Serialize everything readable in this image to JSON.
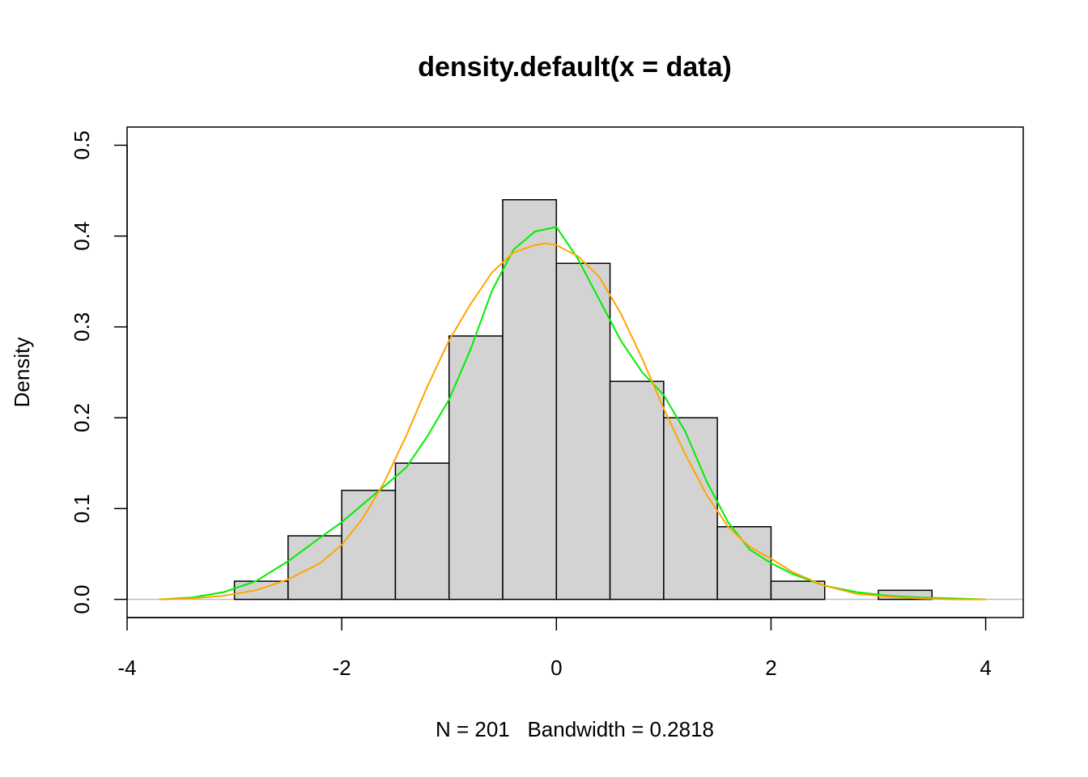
{
  "chart_data": {
    "type": "bar",
    "title": "density.default(x = data)",
    "xlabel": "N = 201   Bandwidth = 0.2818",
    "ylabel": "Density",
    "xlim": [
      -4,
      4.35
    ],
    "ylim": [
      -0.02,
      0.52
    ],
    "x_ticks": [
      -4,
      -2,
      0,
      2,
      4
    ],
    "x_tick_labels": [
      "-4",
      "-2",
      "0",
      "2",
      "4"
    ],
    "y_ticks": [
      0.0,
      0.1,
      0.2,
      0.3,
      0.4,
      0.5
    ],
    "y_tick_labels": [
      "0.0",
      "0.1",
      "0.2",
      "0.3",
      "0.4",
      "0.5"
    ],
    "grid": false,
    "histogram": {
      "breaks": [
        -3.0,
        -2.5,
        -2.0,
        -1.5,
        -1.0,
        -0.5,
        0.0,
        0.5,
        1.0,
        1.5,
        2.0,
        2.5,
        3.0,
        3.5
      ],
      "density": [
        0.02,
        0.07,
        0.12,
        0.15,
        0.29,
        0.44,
        0.37,
        0.24,
        0.2,
        0.08,
        0.02,
        0.0,
        0.01
      ],
      "fill_color": "#d3d3d3",
      "border_color": "#000000"
    },
    "series": [
      {
        "type": "line",
        "color": "#00ee00",
        "x": [
          -3.7,
          -3.4,
          -3.1,
          -2.8,
          -2.5,
          -2.2,
          -2.0,
          -1.8,
          -1.6,
          -1.4,
          -1.2,
          -1.0,
          -0.8,
          -0.6,
          -0.4,
          -0.2,
          0.0,
          0.2,
          0.4,
          0.6,
          0.8,
          1.0,
          1.2,
          1.4,
          1.6,
          1.8,
          2.0,
          2.2,
          2.5,
          2.8,
          3.1,
          3.4,
          3.7,
          4.0
        ],
        "y": [
          0.0,
          0.002,
          0.008,
          0.02,
          0.042,
          0.068,
          0.085,
          0.105,
          0.125,
          0.145,
          0.18,
          0.22,
          0.275,
          0.34,
          0.385,
          0.405,
          0.41,
          0.375,
          0.33,
          0.285,
          0.25,
          0.225,
          0.185,
          0.13,
          0.085,
          0.055,
          0.04,
          0.028,
          0.015,
          0.008,
          0.004,
          0.002,
          0.001,
          0.0
        ]
      },
      {
        "type": "line",
        "color": "#ffa500",
        "x": [
          -3.7,
          -3.4,
          -3.1,
          -2.8,
          -2.5,
          -2.2,
          -2.0,
          -1.8,
          -1.6,
          -1.4,
          -1.2,
          -1.0,
          -0.8,
          -0.6,
          -0.4,
          -0.2,
          -0.1,
          0.0,
          0.2,
          0.4,
          0.6,
          0.8,
          1.0,
          1.2,
          1.4,
          1.6,
          1.8,
          2.0,
          2.2,
          2.5,
          2.8,
          3.1,
          3.4,
          3.7,
          4.0
        ],
        "y": [
          0.0,
          0.001,
          0.004,
          0.01,
          0.022,
          0.04,
          0.06,
          0.09,
          0.13,
          0.18,
          0.235,
          0.285,
          0.325,
          0.36,
          0.382,
          0.39,
          0.392,
          0.39,
          0.378,
          0.355,
          0.315,
          0.265,
          0.21,
          0.16,
          0.115,
          0.08,
          0.058,
          0.045,
          0.03,
          0.015,
          0.006,
          0.003,
          0.001,
          0.0,
          0.0
        ]
      }
    ]
  }
}
